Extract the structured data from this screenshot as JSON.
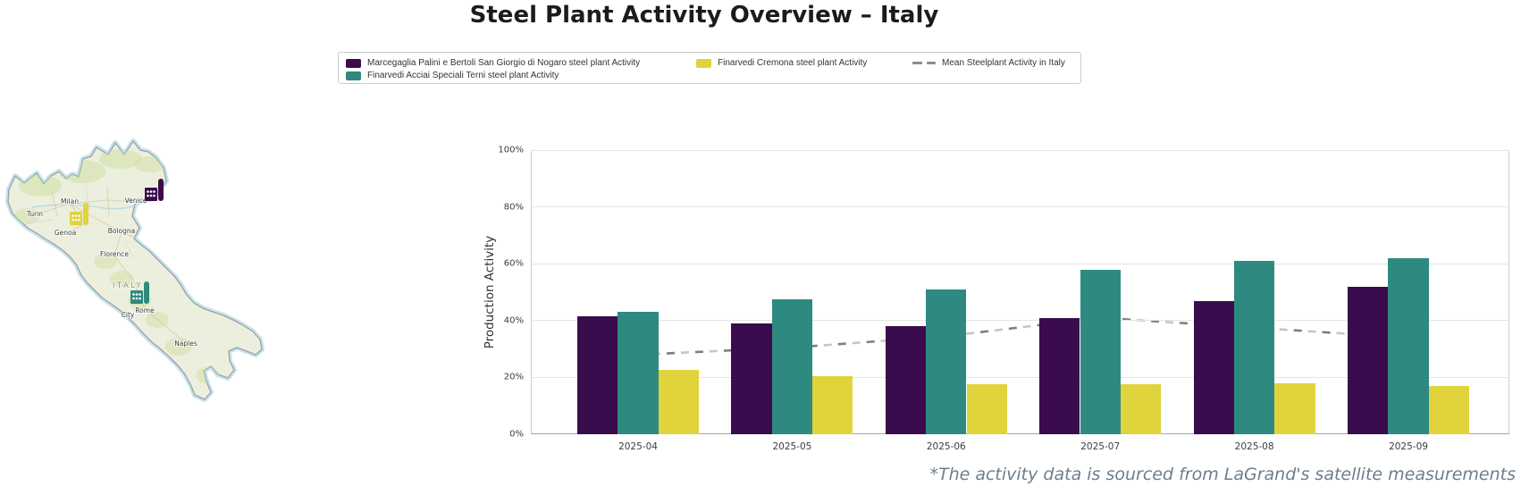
{
  "title": "Steel Plant Activity Overview – Italy",
  "legend": {
    "items": [
      {
        "label": "Marcegaglia Palini e Bertoli San Giorgio di Nogaro steel plant Activity",
        "color": "#3b0c4d",
        "kind": "swatch"
      },
      {
        "label": "Finarvedi Acciai Speciali Terni steel plant Activity",
        "color": "#2e8a80",
        "kind": "swatch"
      },
      {
        "label": "Finarvedi Cremona steel plant Activity",
        "color": "#e0d33c",
        "kind": "swatch"
      },
      {
        "label": "Mean Steelplant Activity in Italy",
        "color": "#8c8c8c",
        "kind": "dashed-line"
      }
    ]
  },
  "map": {
    "region_label": "ITALY",
    "cities": [
      {
        "name": "Milan"
      },
      {
        "name": "Turin"
      },
      {
        "name": "Genoa"
      },
      {
        "name": "Bologna"
      },
      {
        "name": "Florence"
      },
      {
        "name": "Venice"
      },
      {
        "name": "Rome"
      },
      {
        "name": "City"
      },
      {
        "name": "Naples"
      }
    ],
    "plants": [
      {
        "name": "Marcegaglia Palini e Bertoli San Giorgio di Nogaro steel plant",
        "color": "#3b0c4d"
      },
      {
        "name": "Finarvedi Cremona steel plant",
        "color": "#e0d33c"
      },
      {
        "name": "Finarvedi Acciai Speciali Terni steel plant",
        "color": "#2e8a80"
      }
    ]
  },
  "chart_data": {
    "type": "bar",
    "categories": [
      "2025-04",
      "2025-05",
      "2025-06",
      "2025-07",
      "2025-08",
      "2025-09"
    ],
    "series": [
      {
        "name": "Marcegaglia Palini e Bertoli San Giorgio di Nogaro steel plant Activity",
        "color": "#3b0c4d",
        "values": [
          41.5,
          39,
          38,
          41,
          47,
          52
        ]
      },
      {
        "name": "Finarvedi Acciai Speciali Terni steel plant Activity",
        "color": "#2e8a80",
        "values": [
          43,
          47.5,
          51,
          58,
          61,
          62
        ]
      },
      {
        "name": "Finarvedi Cremona steel plant Activity",
        "color": "#e0d33c",
        "values": [
          22.5,
          20.5,
          17.5,
          17.5,
          18,
          17
        ]
      }
    ],
    "mean_line": {
      "name": "Mean Steelplant Activity in Italy",
      "color": "#8c8c8c",
      "values": [
        28,
        30.5,
        34.5,
        41,
        37.5,
        34
      ]
    },
    "title": "",
    "xlabel": "",
    "ylabel": "Production Activity",
    "ylim": [
      0,
      100
    ],
    "yticks": [
      "0%",
      "20%",
      "40%",
      "60%",
      "80%",
      "100%"
    ],
    "grid": true,
    "legend_position": "top"
  },
  "footnote": "*The activity data is sourced from LaGrand's satellite measurements"
}
